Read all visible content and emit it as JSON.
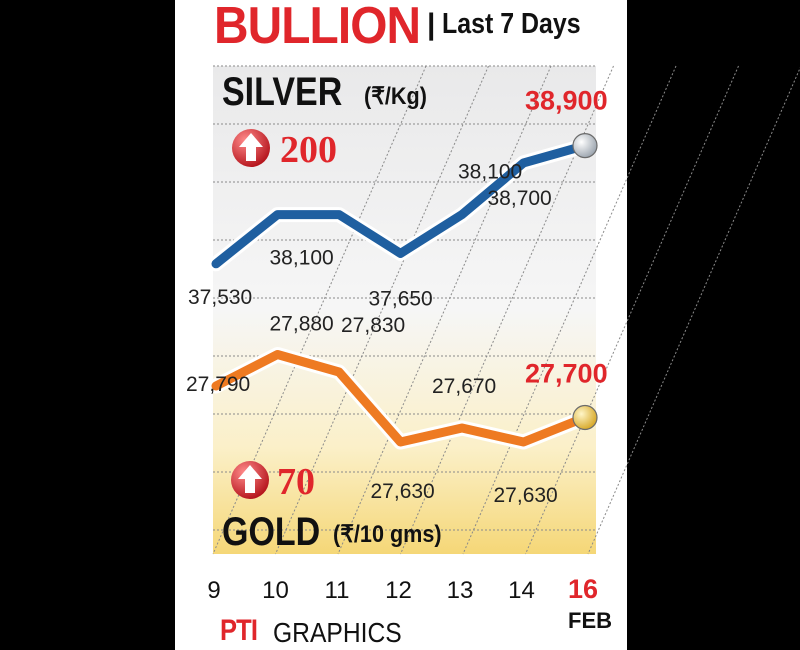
{
  "header": {
    "title": "BULLION",
    "divider": "|",
    "subtitle": "Last 7 Days"
  },
  "colors": {
    "accent_red": "#e0262b",
    "silver_line": "#1f5fa0",
    "gold_line": "#ee7a22",
    "silver_marker": "#c8ced6",
    "gold_marker": "#f2d65a"
  },
  "silver": {
    "label": "SILVER",
    "unit": "(₹/Kg)",
    "change": "200",
    "change_direction": "up",
    "latest_label": "38,900"
  },
  "gold": {
    "label": "GOLD",
    "unit": "(₹/10 gms)",
    "change": "70",
    "change_direction": "up",
    "latest_label": "27,700"
  },
  "credit": {
    "brand": "PTI",
    "text": "GRAPHICS"
  },
  "month_label": "FEB",
  "chart_data": {
    "type": "line",
    "x": [
      9,
      10,
      11,
      12,
      13,
      14,
      16
    ],
    "tick_labels": [
      "9",
      "10",
      "11",
      "12",
      "13",
      "14",
      "16"
    ],
    "highlight_tick": "16",
    "series": [
      {
        "name": "SILVER",
        "values": [
          37530,
          38100,
          38100,
          37650,
          38100,
          38700,
          38900
        ],
        "value_labels": [
          "37,530",
          "38,100",
          "",
          "37,650",
          "38,100",
          "38,700",
          "38,900"
        ]
      },
      {
        "name": "GOLD",
        "values": [
          27790,
          27880,
          27830,
          27630,
          27670,
          27630,
          27700
        ],
        "value_labels": [
          "27,790",
          "27,880",
          "27,830",
          "27,630",
          "27,670",
          "27,630",
          "27,700"
        ]
      }
    ],
    "grid": true
  }
}
